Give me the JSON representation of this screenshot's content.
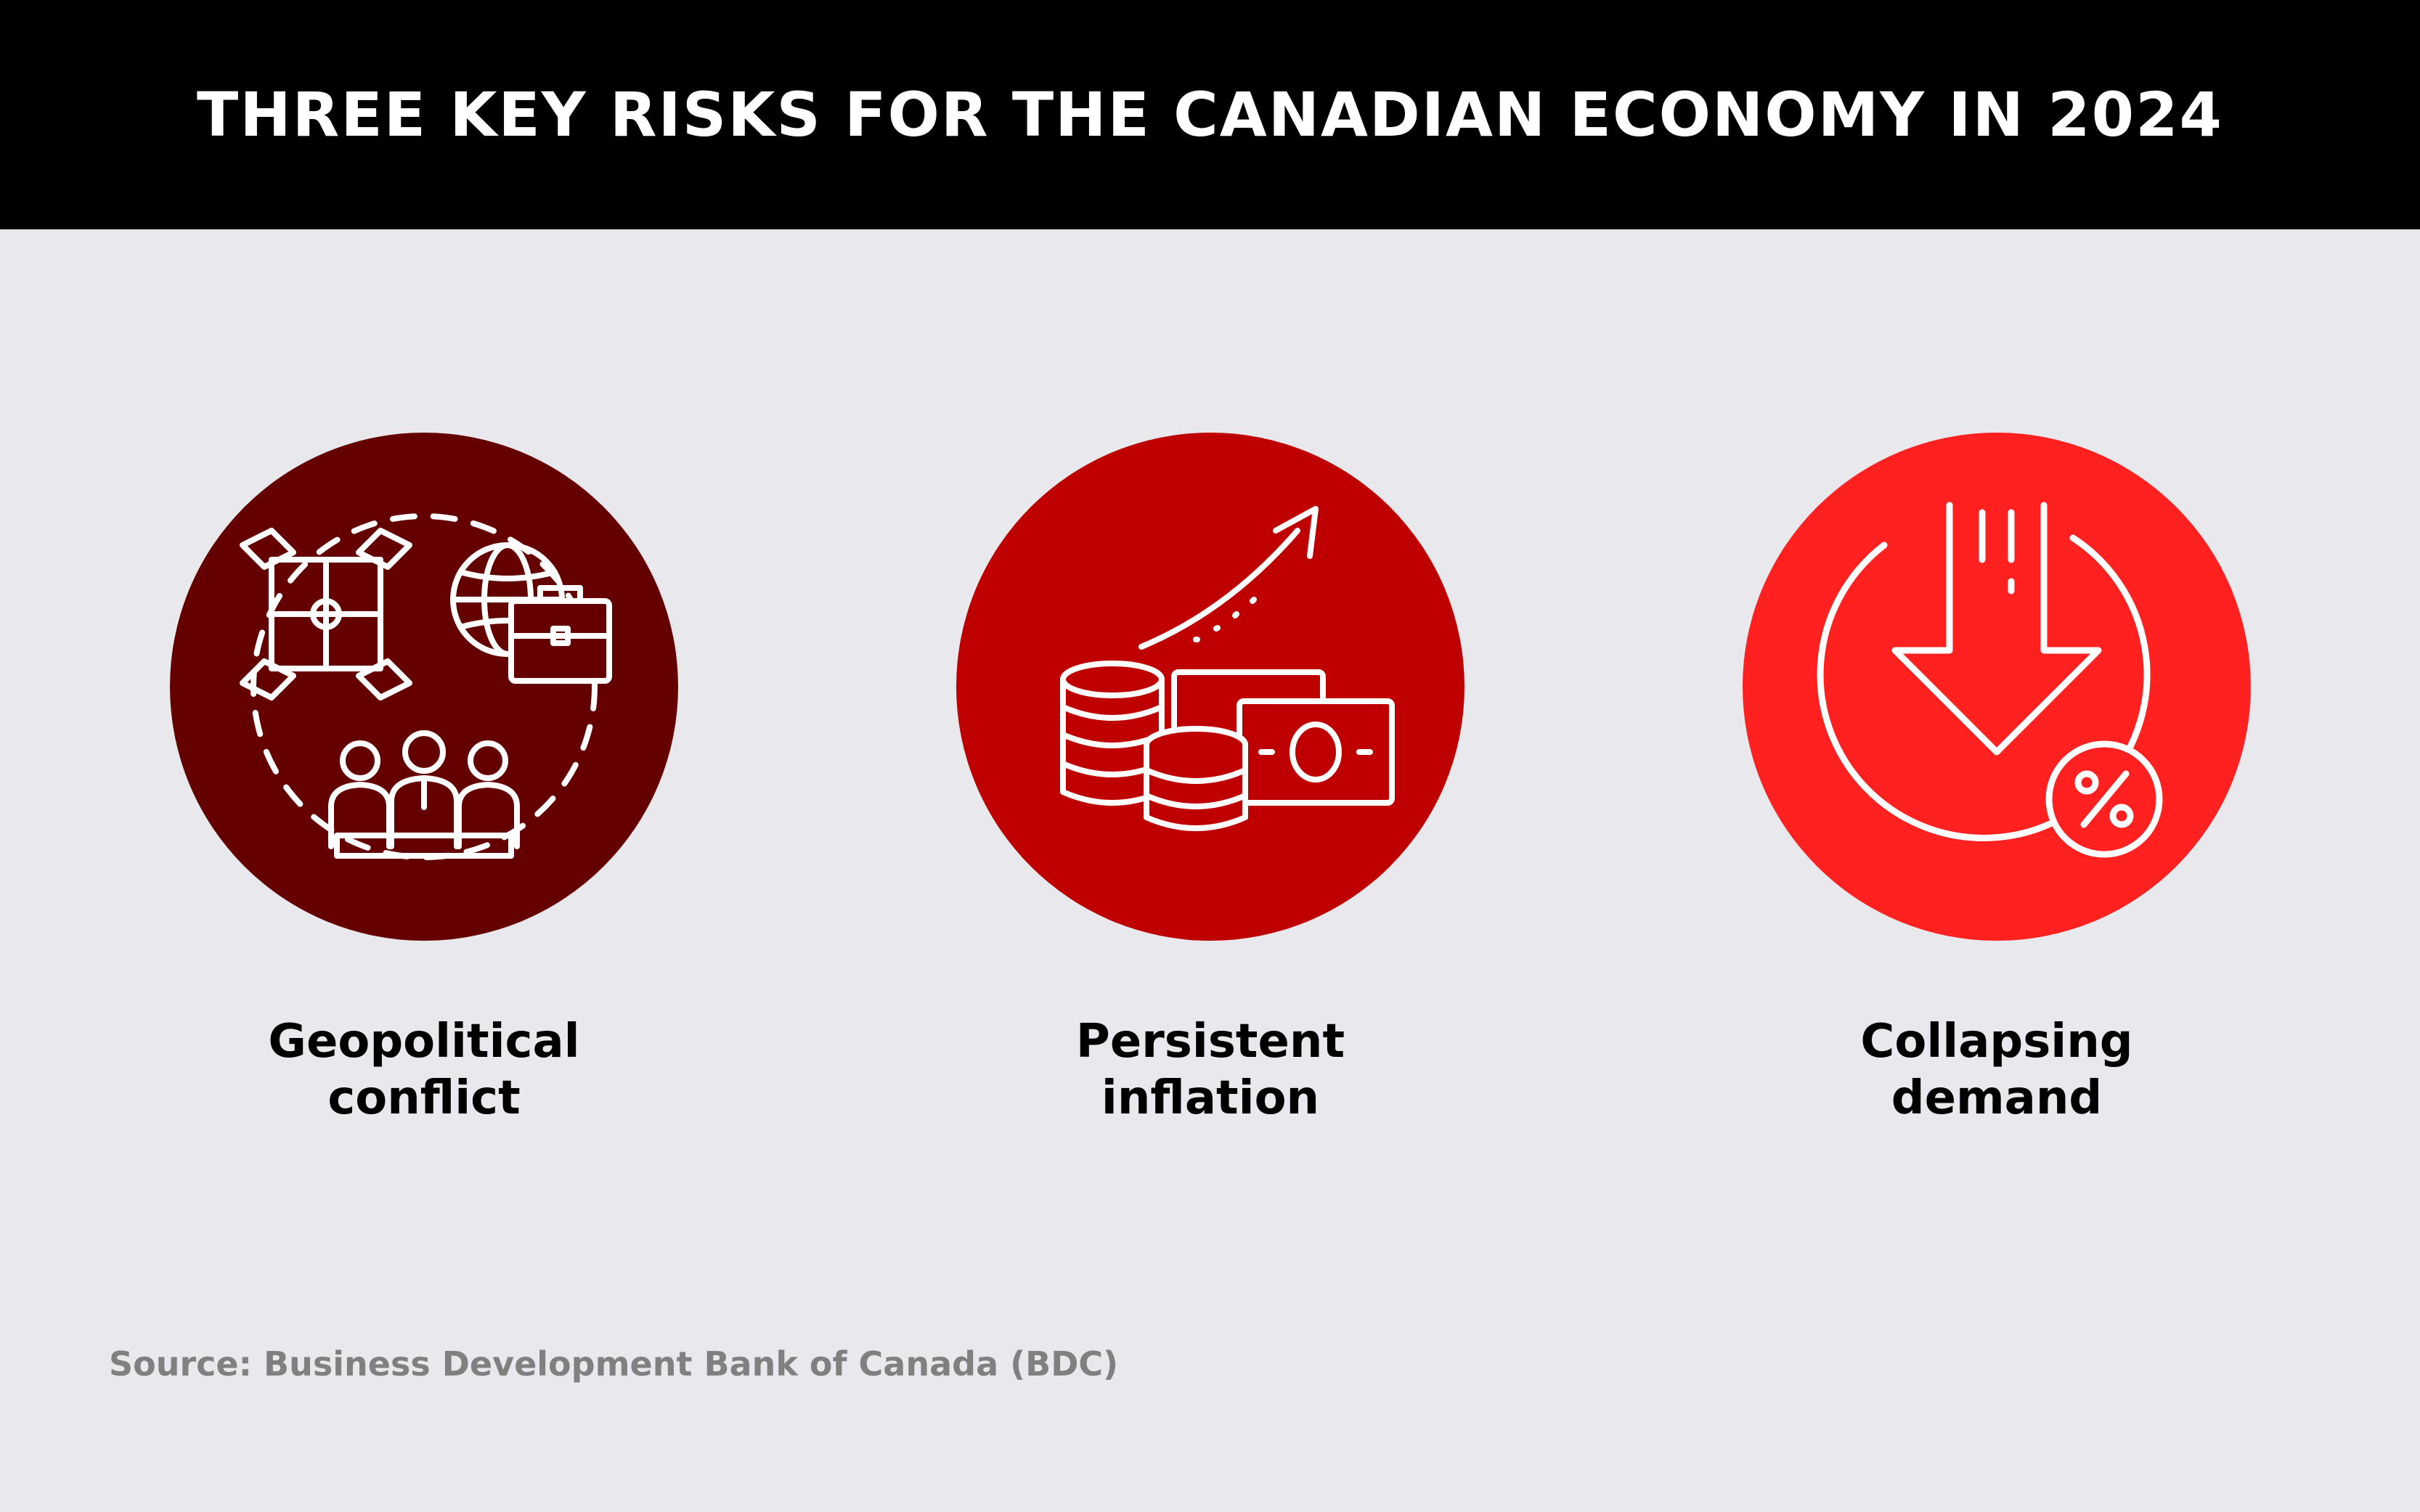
{
  "header": {
    "title": "THREE KEY RISKS FOR THE CANADIAN ECONOMY IN 2024"
  },
  "risks": [
    {
      "line1": "Geopolitical",
      "line2": "conflict",
      "icon": "geopolitical-conflict-icon",
      "color": "#650000"
    },
    {
      "line1": "Persistent",
      "line2": "inflation",
      "icon": "rising-inflation-icon",
      "color": "#bf0000"
    },
    {
      "line1": "Collapsing",
      "line2": "demand",
      "icon": "demand-decline-icon",
      "color": "#ff2020"
    }
  ],
  "footer": {
    "source": "Source: Business Development Bank of Canada (BDC)"
  },
  "colors": {
    "header_bg": "#000000",
    "page_bg": "#e8e8ed",
    "source_text": "#808080"
  }
}
